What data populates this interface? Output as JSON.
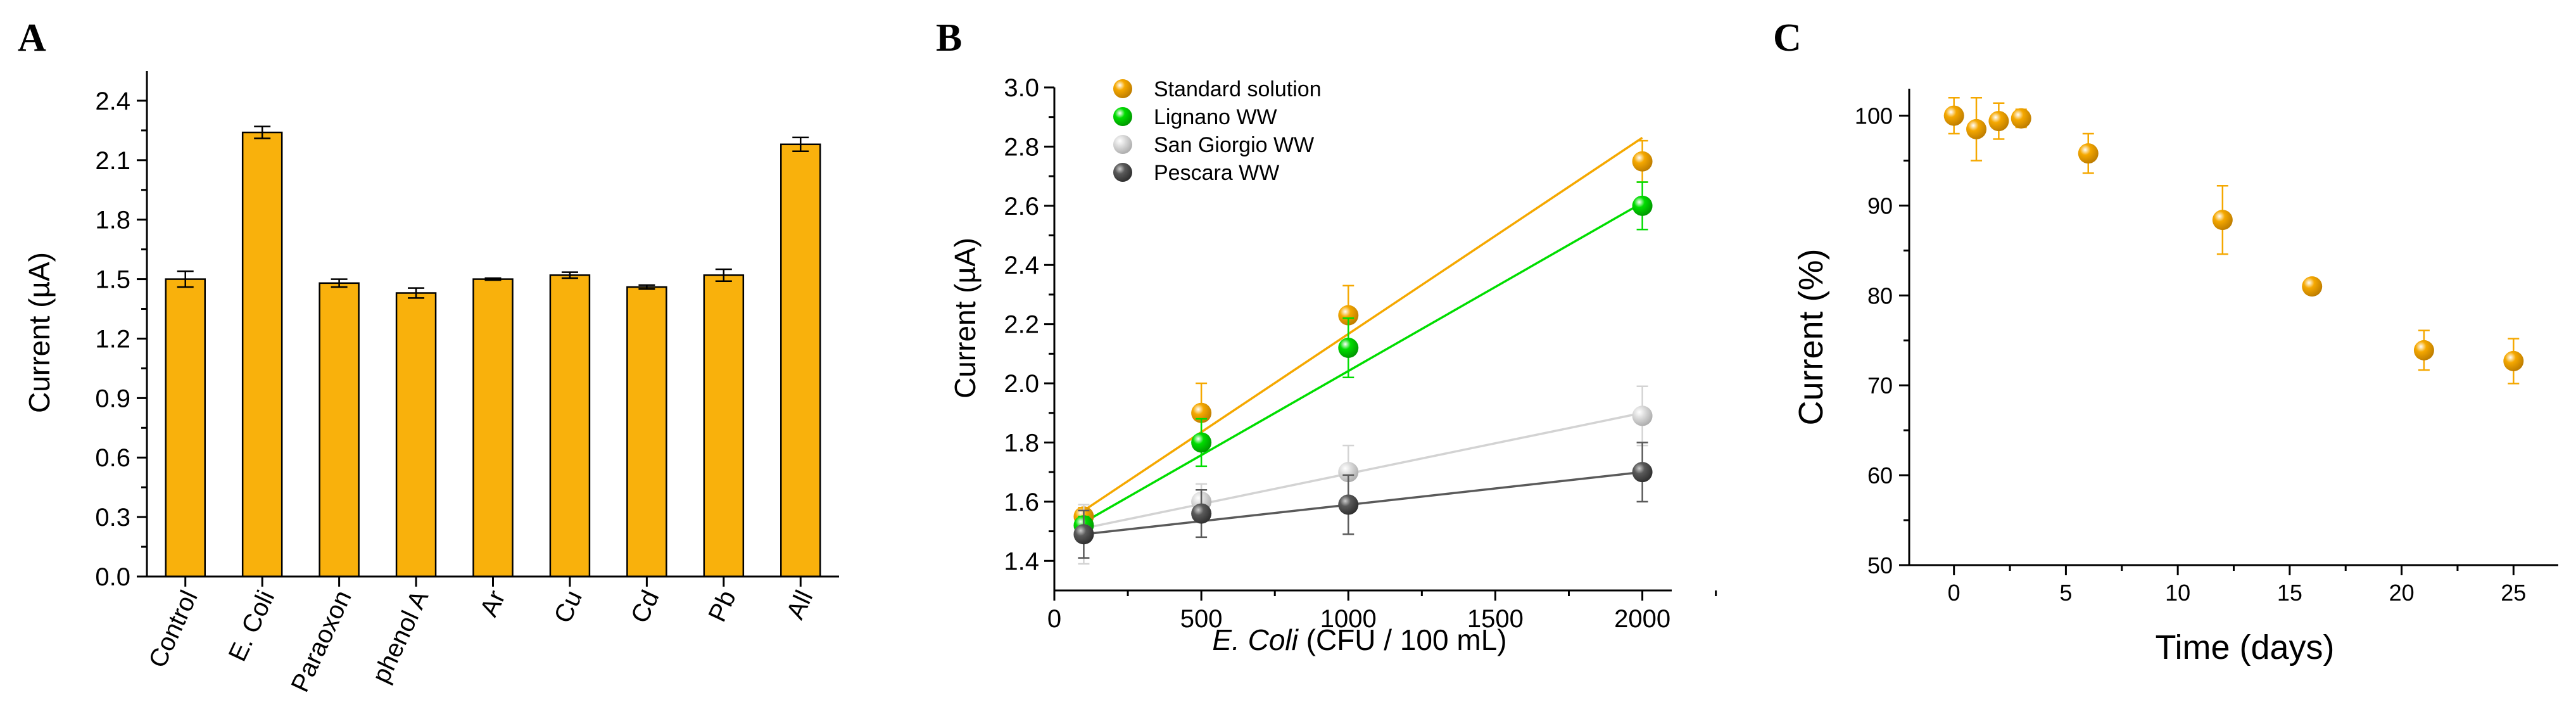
{
  "panels": {
    "a": {
      "label": "A"
    },
    "b": {
      "label": "B"
    },
    "c": {
      "label": "C"
    }
  },
  "colors": {
    "bar": "#F9B10C",
    "standard": "#F5A800",
    "lignano": "#00DD00",
    "san_giorgio": "#D3D3D3",
    "pescara": "#5A5A5A",
    "panel_c": "#F5A800"
  },
  "chart_data": [
    {
      "id": "A",
      "type": "bar",
      "title": "",
      "xlabel": "",
      "ylabel": "Current (µA)",
      "ylim": [
        0,
        2.55
      ],
      "yticks": [
        0.0,
        0.3,
        0.6,
        0.9,
        1.2,
        1.5,
        1.8,
        2.1,
        2.4
      ],
      "ytick_labels": [
        "0.0",
        "0.3",
        "0.6",
        "0.9",
        "1.2",
        "1.5",
        "1.8",
        "2.1",
        "2.4"
      ],
      "categories": [
        "Control",
        "E. Coli",
        "Paraoxon",
        "phenol A",
        "Ar",
        "Cu",
        "Cd",
        "Pb",
        "All"
      ],
      "values": [
        1.5,
        2.24,
        1.48,
        1.43,
        1.5,
        1.52,
        1.46,
        1.52,
        2.18
      ],
      "errors": [
        0.04,
        0.03,
        0.02,
        0.025,
        0.005,
        0.015,
        0.01,
        0.03,
        0.035
      ]
    },
    {
      "id": "B",
      "type": "scatter",
      "title": "",
      "xlabel_italic": "E. Coli",
      "xlabel_rest": " (CFU / 100 mL)",
      "ylabel": "Current (µA)",
      "xlim": [
        0,
        2100
      ],
      "ylim": [
        1.3,
        3.0
      ],
      "xticks": [
        0,
        500,
        1000,
        1500,
        2000
      ],
      "xtick_labels": [
        "0",
        "500",
        "1000",
        "1500",
        "2000"
      ],
      "yticks": [
        1.4,
        1.6,
        1.8,
        2.0,
        2.2,
        2.4,
        2.6,
        2.8,
        3.0
      ],
      "ytick_labels": [
        "1.4",
        "1.6",
        "1.8",
        "2.0",
        "2.2",
        "2.4",
        "2.6",
        "2.8",
        "3.0"
      ],
      "legend_position": "top-left",
      "series": [
        {
          "name": "Standard solution",
          "color_key": "standard",
          "x": [
            100,
            500,
            1000,
            2000
          ],
          "y": [
            1.55,
            1.9,
            2.23,
            2.75
          ],
          "errors": [
            0.03,
            0.1,
            0.1,
            0.07
          ],
          "fit": [
            [
              100,
              1.57
            ],
            [
              2000,
              2.83
            ]
          ]
        },
        {
          "name": "Lignano WW",
          "color_key": "lignano",
          "x": [
            100,
            500,
            1000,
            2000
          ],
          "y": [
            1.52,
            1.8,
            2.12,
            2.6
          ],
          "errors": [
            0.03,
            0.08,
            0.1,
            0.08
          ],
          "fit": [
            [
              100,
              1.53
            ],
            [
              2000,
              2.61
            ]
          ]
        },
        {
          "name": "San Giorgio WW",
          "color_key": "san_giorgio",
          "x": [
            100,
            500,
            1000,
            2000
          ],
          "y": [
            1.49,
            1.6,
            1.7,
            1.89
          ],
          "errors": [
            0.1,
            0.06,
            0.09,
            0.1
          ],
          "fit": [
            [
              100,
              1.51
            ],
            [
              2000,
              1.9
            ]
          ]
        },
        {
          "name": "Pescara WW",
          "color_key": "pescara",
          "x": [
            100,
            500,
            1000,
            2000
          ],
          "y": [
            1.49,
            1.56,
            1.59,
            1.7
          ],
          "errors": [
            0.08,
            0.08,
            0.1,
            0.1
          ],
          "fit": [
            [
              100,
              1.49
            ],
            [
              2000,
              1.7
            ]
          ]
        }
      ]
    },
    {
      "id": "C",
      "type": "scatter",
      "title": "",
      "xlabel": "Time (days)",
      "ylabel": "Current (%)",
      "xlim": [
        -2,
        27
      ],
      "ylim": [
        50,
        103
      ],
      "xticks": [
        0,
        5,
        10,
        15,
        20,
        25
      ],
      "xtick_labels": [
        "0",
        "5",
        "10",
        "15",
        "20",
        "25"
      ],
      "yticks": [
        50,
        60,
        70,
        80,
        90,
        100
      ],
      "ytick_labels": [
        "50",
        "60",
        "70",
        "80",
        "90",
        "100"
      ],
      "series": [
        {
          "name": "Current",
          "color_key": "panel_c",
          "x": [
            0,
            1,
            2,
            3,
            6,
            12,
            16,
            21,
            25
          ],
          "y": [
            100,
            98.5,
            99.4,
            99.7,
            95.8,
            88.4,
            81.0,
            73.9,
            72.7
          ],
          "errors": [
            2.0,
            3.5,
            2.0,
            1.0,
            2.2,
            3.8,
            0.6,
            2.2,
            2.5
          ]
        }
      ]
    }
  ]
}
